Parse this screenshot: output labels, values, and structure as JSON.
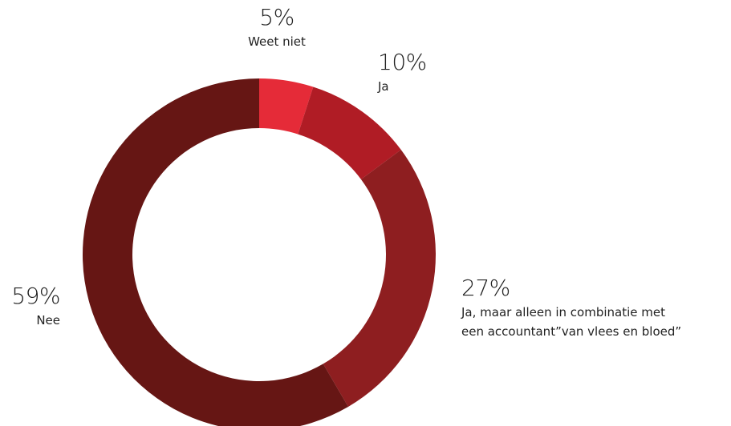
{
  "chart_data": {
    "type": "pie",
    "categories": [
      "Weet niet",
      "Ja",
      "Ja, maar alleen in combinatie met\neen accountant”van vlees en bloed”",
      "Nee"
    ],
    "values": [
      5,
      10,
      27,
      59
    ],
    "value_labels": [
      "5%",
      "10%",
      "27%",
      "59%"
    ],
    "colors": [
      "#e52b38",
      "#b01c25",
      "#8e1e20",
      "#661614"
    ]
  }
}
